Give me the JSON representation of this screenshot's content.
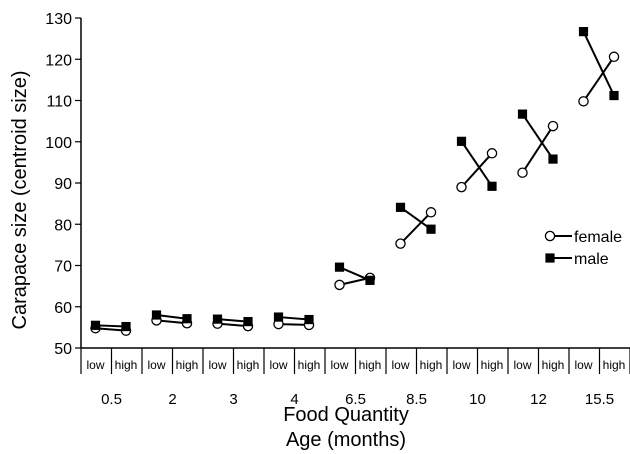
{
  "chart_data": {
    "type": "scatter",
    "ylabel": "Carapace size (centroid size)",
    "xlabel_line1": "Food Quantity",
    "xlabel_line2": "Age (months)",
    "ylim": [
      50,
      130
    ],
    "yticks": [
      50,
      60,
      70,
      80,
      90,
      100,
      110,
      120,
      130
    ],
    "conditions": [
      "low",
      "high"
    ],
    "ages": [
      "0.5",
      "2",
      "3",
      "4",
      "6.5",
      "8.5",
      "10",
      "12",
      "15.5"
    ],
    "legend_position": "right",
    "series": [
      {
        "name": "female",
        "marker": "open-circle",
        "values": [
          [
            54.8,
            54.2
          ],
          [
            56.7,
            56.0
          ],
          [
            55.9,
            55.3
          ],
          [
            55.8,
            55.6
          ],
          [
            65.3,
            67.0
          ],
          [
            75.3,
            82.9
          ],
          [
            89.0,
            97.2
          ],
          [
            92.5,
            103.8
          ],
          [
            109.8,
            120.6
          ]
        ]
      },
      {
        "name": "male",
        "marker": "filled-square",
        "values": [
          [
            55.5,
            55.2
          ],
          [
            58.0,
            57.1
          ],
          [
            57.0,
            56.4
          ],
          [
            57.5,
            56.9
          ],
          [
            69.6,
            66.4
          ],
          [
            84.1,
            78.8
          ],
          [
            100.1,
            89.2
          ],
          [
            106.7,
            95.8
          ],
          [
            126.7,
            111.2
          ]
        ]
      }
    ]
  }
}
